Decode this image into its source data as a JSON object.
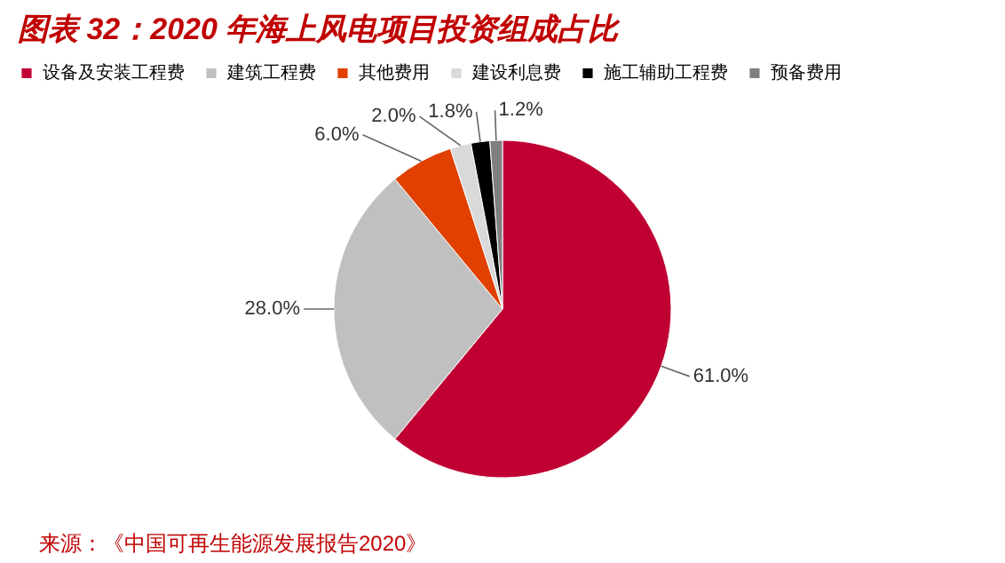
{
  "chart_data": {
    "type": "pie",
    "title": "图表 32：2020 年海上风电项目投资组成占比",
    "categories": [
      "设备及安装工程费",
      "建筑工程费",
      "其他费用",
      "建设利息费",
      "施工辅助工程费",
      "预备费用"
    ],
    "values": [
      61.0,
      28.0,
      6.0,
      2.0,
      1.8,
      1.2
    ],
    "colors": [
      "#c00033",
      "#c0c0c0",
      "#e04000",
      "#d9d9d9",
      "#000000",
      "#808080"
    ],
    "value_labels": [
      "61.0%",
      "28.0%",
      "6.0%",
      "2.0%",
      "1.8%",
      "1.2%"
    ],
    "legend": "top",
    "annotations": [
      "来源：《中国可再生能源发展报告2020》"
    ]
  }
}
